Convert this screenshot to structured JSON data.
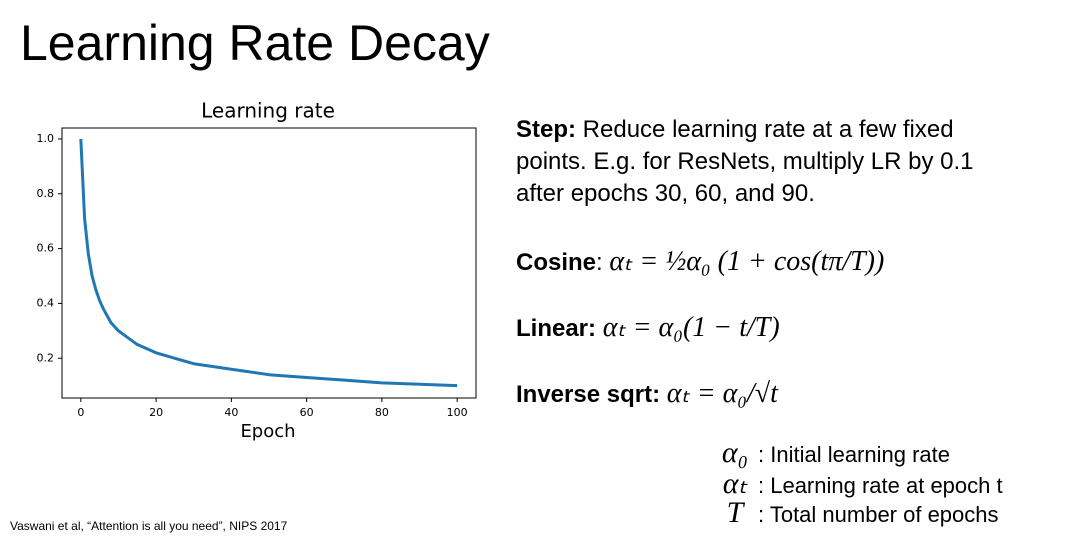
{
  "title": "Learning Rate Decay",
  "chart_data": {
    "type": "line",
    "title": "Learning rate",
    "x_label": "Epoch",
    "x": [
      0,
      1,
      2,
      3,
      4,
      5,
      6,
      8,
      10,
      12,
      15,
      20,
      25,
      30,
      40,
      50,
      60,
      70,
      80,
      90,
      100
    ],
    "series": [
      {
        "color": "#1f77b4",
        "values": [
          1.0,
          0.71,
          0.58,
          0.5,
          0.45,
          0.41,
          0.38,
          0.33,
          0.3,
          0.28,
          0.25,
          0.22,
          0.2,
          0.18,
          0.16,
          0.14,
          0.13,
          0.12,
          0.11,
          0.105,
          0.1
        ]
      }
    ],
    "xlim": [
      -5,
      105
    ],
    "ylim": [
      0.055,
      1.04
    ],
    "xticks": [
      0,
      20,
      40,
      60,
      80,
      100
    ],
    "yticks": [
      0.2,
      0.4,
      0.6,
      0.8,
      {
        "value": 1,
        "label": "1.0"
      }
    ],
    "grid": false
  },
  "step": {
    "label": "Step:",
    "lines": [
      "Reduce learning rate at a few fixed",
      "points. E.g. for ResNets, multiply LR by 0.1",
      "after epochs 30, 60, and 90."
    ]
  },
  "methods": [
    {
      "label": "Cosine",
      "suffix": ":",
      "formula": "αₜ = ½α₀ (1 + cos(tπ/T))"
    },
    {
      "label": "Linear:",
      "formula": "αₜ = α₀(1 − t/T)"
    },
    {
      "label": "Inverse sqrt:",
      "formula": "αₜ = α₀/√t"
    }
  ],
  "symbols": [
    {
      "symbol": "α₀",
      "text": ": Initial learning rate"
    },
    {
      "symbol": "αₜ",
      "text": ": Learning rate at epoch t"
    },
    {
      "symbol": "T",
      "text": ": Total number of epochs"
    }
  ],
  "footnote": "Vaswani et al, “Attention is all you need”, NIPS 2017"
}
